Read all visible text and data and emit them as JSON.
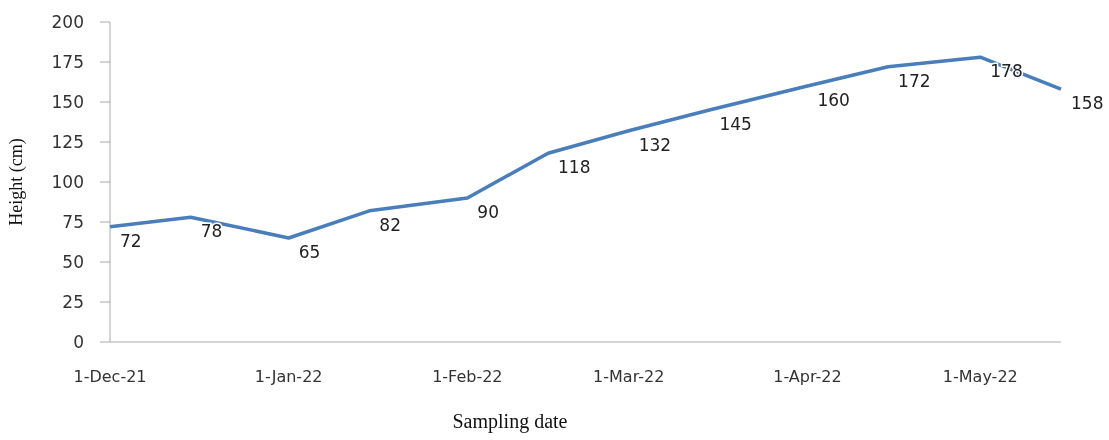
{
  "chart_data": {
    "type": "line",
    "xlabel": "Sampling date",
    "ylabel": "Height (cm)",
    "x": [
      "2021-12-01",
      "2021-12-15",
      "2022-01-01",
      "2022-01-15",
      "2022-02-01",
      "2022-02-15",
      "2022-03-01",
      "2022-03-15",
      "2022-04-01",
      "2022-04-15",
      "2022-05-01",
      "2022-05-15"
    ],
    "series": [
      {
        "color": "#4a7ebb",
        "values": [
          72,
          78,
          65,
          82,
          90,
          118,
          132,
          145,
          160,
          172,
          178,
          158
        ]
      }
    ],
    "xlim": [
      "2021-12-01",
      "2022-05-15"
    ],
    "xticks": [
      {
        "value": "2021-12-01",
        "label": "1-Dec-21"
      },
      {
        "value": "2022-01-01",
        "label": "1-Jan-22"
      },
      {
        "value": "2022-02-01",
        "label": "1-Feb-22"
      },
      {
        "value": "2022-03-01",
        "label": "1-Mar-22"
      },
      {
        "value": "2022-04-01",
        "label": "1-Apr-22"
      },
      {
        "value": "2022-05-01",
        "label": "1-May-22"
      }
    ],
    "ylim": [
      0,
      200
    ],
    "yticks": [
      0,
      25,
      50,
      75,
      100,
      125,
      150,
      175,
      200
    ],
    "data_labels": true,
    "grid": false,
    "marker": "none",
    "line_style": "solid"
  }
}
